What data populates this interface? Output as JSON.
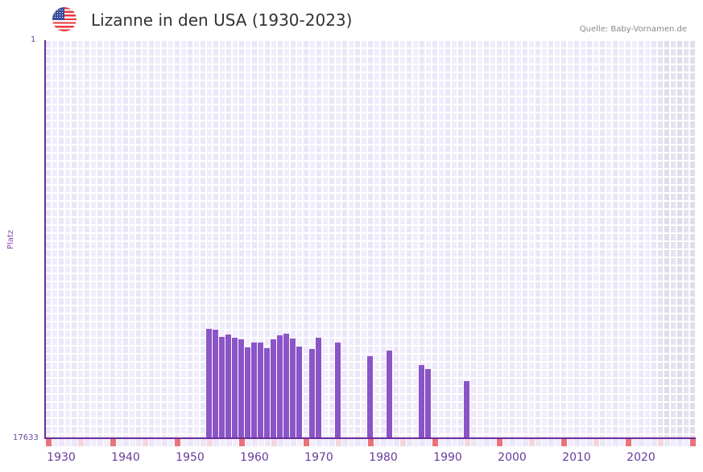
{
  "header": {
    "title": "Lizanne in den USA (1930-2023)",
    "flag_icon": "us-flag-icon",
    "source": "Quelle: Baby-Vornamen.de"
  },
  "colors": {
    "bar": "#8b54c7",
    "axis": "#6a2f9c",
    "grid_a": "#f1edfb",
    "grid_b": "#ebe6f8",
    "future_shade": "#e1dced",
    "decade_marker": "#e8737a",
    "half_decade_marker": "#f5d6dd"
  },
  "chart_data": {
    "type": "bar",
    "title": "Lizanne in den USA (1930-2023)",
    "xlabel": "",
    "ylabel": "Platz",
    "y_inverted": true,
    "ylim": [
      1,
      17633
    ],
    "y_tick_labels": [
      "1",
      "17633"
    ],
    "x_tick_labels": [
      "1930",
      "1940",
      "1950",
      "1960",
      "1970",
      "1980",
      "1990",
      "2000",
      "2010",
      "2020"
    ],
    "xlim": [
      1928,
      2028
    ],
    "grid": true,
    "legend": null,
    "categories": [
      1953,
      1954,
      1955,
      1956,
      1957,
      1958,
      1959,
      1960,
      1961,
      1962,
      1963,
      1964,
      1965,
      1966,
      1967,
      1969,
      1970,
      1973,
      1978,
      1981,
      1986,
      1987,
      1993
    ],
    "series": [
      {
        "name": "Platz",
        "values": [
          12789,
          12824,
          13145,
          13038,
          13180,
          13252,
          13608,
          13394,
          13394,
          13643,
          13252,
          13074,
          13003,
          13216,
          13572,
          13679,
          13180,
          13394,
          14000,
          13750,
          14391,
          14569,
          15104
        ]
      }
    ]
  }
}
